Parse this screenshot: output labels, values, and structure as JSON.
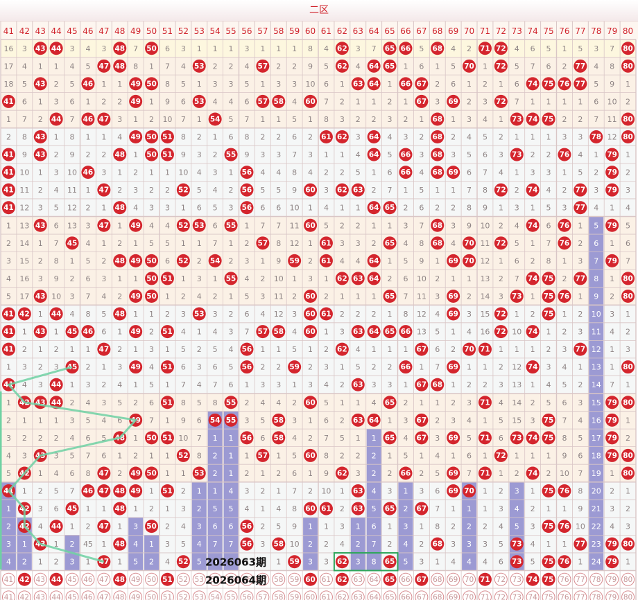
{
  "zone_title": "二区",
  "numbers": [
    41,
    42,
    43,
    44,
    45,
    46,
    47,
    48,
    49,
    50,
    51,
    52,
    53,
    54,
    55,
    56,
    57,
    58,
    59,
    60,
    61,
    62,
    63,
    64,
    65,
    66,
    67,
    68,
    69,
    70,
    71,
    72,
    73,
    74,
    75,
    76,
    77,
    78,
    79,
    80
  ],
  "rows": [
    [
      16,
      3,
      43,
      44,
      3,
      4,
      3,
      48,
      7,
      50,
      6,
      3,
      1,
      1,
      1,
      3,
      1,
      1,
      1,
      8,
      4,
      62,
      3,
      7,
      65,
      66,
      5,
      68,
      4,
      2,
      71,
      72,
      4,
      6,
      5,
      1,
      5,
      3,
      7,
      80
    ],
    [
      17,
      4,
      1,
      1,
      4,
      5,
      47,
      48,
      8,
      1,
      7,
      4,
      53,
      2,
      2,
      4,
      57,
      2,
      2,
      9,
      5,
      62,
      4,
      64,
      65,
      1,
      6,
      1,
      5,
      70,
      1,
      72,
      5,
      7,
      6,
      2,
      77,
      4,
      8,
      80
    ],
    [
      18,
      5,
      43,
      2,
      5,
      46,
      1,
      1,
      49,
      50,
      8,
      5,
      1,
      3,
      3,
      5,
      1,
      3,
      3,
      10,
      6,
      1,
      63,
      64,
      1,
      66,
      67,
      2,
      6,
      1,
      2,
      1,
      6,
      74,
      75,
      76,
      77,
      5,
      9,
      1
    ],
    [
      41,
      6,
      1,
      3,
      6,
      1,
      2,
      2,
      49,
      1,
      9,
      6,
      53,
      4,
      4,
      6,
      57,
      58,
      4,
      60,
      7,
      2,
      1,
      1,
      2,
      1,
      67,
      3,
      69,
      2,
      3,
      72,
      7,
      1,
      1,
      1,
      1,
      6,
      10,
      2
    ],
    [
      1,
      7,
      2,
      44,
      7,
      46,
      47,
      3,
      1,
      2,
      10,
      7,
      1,
      54,
      5,
      7,
      1,
      1,
      5,
      1,
      8,
      3,
      2,
      2,
      3,
      2,
      1,
      68,
      1,
      3,
      4,
      1,
      73,
      74,
      75,
      2,
      2,
      7,
      11,
      80
    ],
    [
      2,
      8,
      43,
      1,
      8,
      1,
      1,
      4,
      49,
      50,
      51,
      8,
      2,
      1,
      6,
      8,
      2,
      2,
      6,
      2,
      61,
      62,
      3,
      64,
      4,
      3,
      2,
      68,
      2,
      4,
      5,
      2,
      1,
      1,
      1,
      3,
      3,
      78,
      12,
      80
    ],
    [
      41,
      9,
      43,
      2,
      9,
      2,
      2,
      48,
      1,
      50,
      51,
      9,
      3,
      2,
      55,
      9,
      3,
      3,
      7,
      3,
      1,
      1,
      4,
      64,
      5,
      66,
      3,
      68,
      3,
      5,
      6,
      3,
      73,
      2,
      2,
      76,
      4,
      1,
      79,
      1
    ],
    [
      41,
      10,
      1,
      3,
      10,
      46,
      3,
      1,
      2,
      1,
      1,
      10,
      4,
      3,
      1,
      56,
      4,
      4,
      8,
      4,
      2,
      2,
      5,
      1,
      6,
      66,
      4,
      68,
      69,
      6,
      7,
      4,
      1,
      3,
      3,
      1,
      5,
      2,
      79,
      2
    ],
    [
      41,
      11,
      2,
      4,
      11,
      1,
      47,
      2,
      3,
      2,
      2,
      52,
      5,
      4,
      2,
      56,
      5,
      5,
      9,
      60,
      3,
      62,
      63,
      2,
      7,
      1,
      5,
      1,
      1,
      7,
      8,
      72,
      2,
      74,
      4,
      2,
      77,
      3,
      79,
      3
    ],
    [
      41,
      12,
      3,
      5,
      12,
      2,
      1,
      48,
      4,
      3,
      3,
      1,
      6,
      5,
      3,
      56,
      6,
      6,
      10,
      1,
      4,
      1,
      1,
      64,
      65,
      2,
      6,
      2,
      2,
      8,
      9,
      1,
      3,
      1,
      5,
      3,
      77,
      4,
      1,
      4
    ],
    [
      1,
      13,
      43,
      6,
      13,
      3,
      47,
      1,
      49,
      4,
      4,
      52,
      53,
      6,
      55,
      1,
      7,
      7,
      11,
      60,
      5,
      2,
      2,
      1,
      1,
      3,
      7,
      68,
      3,
      9,
      10,
      2,
      4,
      74,
      6,
      76,
      1,
      5,
      79,
      5
    ],
    [
      2,
      14,
      1,
      7,
      45,
      4,
      1,
      2,
      1,
      5,
      5,
      1,
      1,
      7,
      1,
      2,
      57,
      8,
      12,
      1,
      61,
      3,
      3,
      2,
      65,
      4,
      8,
      68,
      4,
      70,
      11,
      72,
      5,
      1,
      7,
      76,
      2,
      6,
      1,
      6
    ],
    [
      3,
      15,
      2,
      8,
      1,
      5,
      2,
      48,
      49,
      50,
      6,
      52,
      2,
      54,
      2,
      3,
      1,
      9,
      59,
      2,
      61,
      4,
      4,
      64,
      1,
      5,
      9,
      1,
      69,
      70,
      12,
      1,
      6,
      2,
      8,
      1,
      3,
      7,
      79,
      7
    ],
    [
      4,
      16,
      3,
      9,
      2,
      6,
      3,
      1,
      1,
      50,
      51,
      1,
      3,
      1,
      55,
      4,
      2,
      10,
      1,
      3,
      1,
      62,
      63,
      64,
      2,
      6,
      10,
      2,
      1,
      1,
      13,
      2,
      7,
      74,
      75,
      2,
      77,
      8,
      1,
      80
    ],
    [
      5,
      17,
      43,
      10,
      3,
      7,
      4,
      2,
      49,
      50,
      1,
      2,
      4,
      2,
      1,
      5,
      3,
      11,
      2,
      60,
      2,
      1,
      1,
      1,
      65,
      7,
      11,
      3,
      69,
      2,
      14,
      3,
      73,
      1,
      75,
      76,
      1,
      9,
      2,
      80
    ],
    [
      41,
      42,
      1,
      44,
      4,
      8,
      5,
      48,
      1,
      1,
      2,
      3,
      53,
      3,
      2,
      6,
      4,
      12,
      3,
      60,
      61,
      2,
      2,
      2,
      1,
      8,
      12,
      4,
      69,
      3,
      15,
      72,
      1,
      2,
      75,
      1,
      2,
      10,
      3,
      1
    ],
    [
      41,
      1,
      43,
      1,
      45,
      46,
      6,
      1,
      49,
      2,
      51,
      4,
      1,
      4,
      3,
      7,
      57,
      58,
      4,
      60,
      1,
      3,
      63,
      64,
      65,
      66,
      13,
      5,
      1,
      4,
      16,
      72,
      10,
      74,
      1,
      2,
      3,
      11,
      4,
      2
    ],
    [
      41,
      2,
      1,
      2,
      1,
      1,
      47,
      2,
      1,
      3,
      1,
      5,
      2,
      5,
      4,
      56,
      1,
      1,
      5,
      1,
      2,
      62,
      4,
      1,
      1,
      1,
      67,
      6,
      2,
      70,
      71,
      1,
      1,
      1,
      2,
      3,
      77,
      12,
      1,
      3
    ],
    [
      1,
      3,
      2,
      3,
      45,
      2,
      1,
      3,
      49,
      4,
      51,
      6,
      3,
      6,
      5,
      56,
      2,
      2,
      59,
      2,
      3,
      1,
      5,
      2,
      2,
      66,
      1,
      7,
      69,
      1,
      1,
      2,
      12,
      74,
      3,
      4,
      1,
      13,
      1,
      80
    ],
    [
      41,
      4,
      3,
      44,
      1,
      3,
      2,
      4,
      1,
      5,
      1,
      7,
      4,
      7,
      6,
      1,
      3,
      3,
      1,
      3,
      4,
      2,
      63,
      3,
      3,
      1,
      67,
      68,
      1,
      2,
      2,
      3,
      13,
      1,
      4,
      5,
      2,
      14,
      7,
      1
    ],
    [
      1,
      42,
      43,
      44,
      2,
      4,
      3,
      5,
      2,
      6,
      51,
      8,
      5,
      8,
      55,
      2,
      4,
      4,
      2,
      60,
      5,
      1,
      1,
      4,
      65,
      2,
      1,
      1,
      2,
      3,
      71,
      4,
      14,
      2,
      5,
      6,
      3,
      15,
      79,
      80
    ],
    [
      2,
      1,
      1,
      1,
      3,
      5,
      4,
      6,
      49,
      7,
      1,
      9,
      6,
      54,
      55,
      3,
      5,
      58,
      3,
      1,
      6,
      2,
      63,
      64,
      1,
      3,
      67,
      2,
      3,
      4,
      1,
      5,
      15,
      3,
      75,
      7,
      4,
      16,
      79,
      1
    ],
    [
      3,
      2,
      2,
      2,
      4,
      6,
      5,
      48,
      1,
      50,
      51,
      10,
      7,
      1,
      1,
      56,
      6,
      58,
      4,
      2,
      7,
      5,
      1,
      1,
      65,
      4,
      67,
      3,
      69,
      5,
      71,
      6,
      73,
      74,
      75,
      8,
      5,
      17,
      79,
      2
    ],
    [
      4,
      3,
      43,
      3,
      5,
      7,
      6,
      1,
      2,
      1,
      1,
      52,
      8,
      2,
      1,
      1,
      57,
      1,
      5,
      60,
      8,
      2,
      2,
      2,
      1,
      5,
      1,
      4,
      1,
      6,
      1,
      72,
      1,
      1,
      1,
      9,
      6,
      18,
      79,
      80
    ],
    [
      5,
      42,
      1,
      4,
      6,
      8,
      47,
      2,
      49,
      50,
      1,
      1,
      53,
      2,
      1,
      2,
      1,
      2,
      6,
      1,
      9,
      62,
      3,
      2,
      2,
      66,
      2,
      5,
      69,
      7,
      71,
      1,
      2,
      74,
      2,
      10,
      7,
      19,
      1,
      80
    ],
    [
      41,
      1,
      2,
      5,
      7,
      46,
      47,
      48,
      49,
      1,
      51,
      2,
      1,
      1,
      4,
      3,
      2,
      1,
      7,
      2,
      10,
      1,
      63,
      4,
      3,
      1,
      3,
      6,
      69,
      70,
      1,
      2,
      3,
      1,
      75,
      76,
      8,
      20,
      2,
      1
    ],
    [
      1,
      42,
      3,
      6,
      45,
      1,
      1,
      48,
      1,
      2,
      1,
      3,
      2,
      5,
      5,
      4,
      1,
      4,
      8,
      60,
      61,
      2,
      63,
      5,
      65,
      2,
      67,
      7,
      1,
      1,
      1,
      3,
      4,
      2,
      1,
      1,
      9,
      21,
      3,
      2
    ],
    [
      2,
      42,
      4,
      44,
      1,
      2,
      47,
      1,
      3,
      50,
      2,
      4,
      3,
      6,
      6,
      56,
      2,
      5,
      9,
      1,
      1,
      3,
      1,
      6,
      1,
      3,
      1,
      8,
      2,
      2,
      2,
      4,
      5,
      3,
      75,
      76,
      10,
      22,
      4,
      3
    ],
    [
      3,
      1,
      43,
      1,
      2,
      45,
      1,
      48,
      4,
      1,
      3,
      5,
      4,
      7,
      7,
      56,
      3,
      58,
      10,
      2,
      2,
      4,
      2,
      7,
      2,
      4,
      2,
      68,
      3,
      3,
      3,
      5,
      73,
      4,
      1,
      1,
      77,
      23,
      79,
      80
    ],
    [
      4,
      2,
      1,
      2,
      3,
      1,
      47,
      1,
      5,
      2,
      4,
      52,
      5,
      8,
      8,
      1,
      4,
      1,
      59,
      3,
      3,
      62,
      3,
      8,
      65,
      5,
      3,
      1,
      4,
      4,
      4,
      6,
      73,
      5,
      75,
      76,
      1,
      24,
      79,
      1
    ]
  ],
  "bars": [
    5,
    3,
    0,
    0,
    2,
    0,
    0,
    0,
    3,
    2,
    0,
    0,
    5,
    9,
    9,
    0,
    0,
    0,
    0,
    3,
    0,
    0,
    3,
    8,
    0,
    5,
    0,
    0,
    0,
    5,
    0,
    0,
    5,
    0,
    0,
    0,
    0,
    20,
    0,
    0
  ],
  "draw_rows": [
    [
      41,
      42,
      43,
      44,
      45,
      46,
      47,
      48,
      49,
      50,
      51,
      52,
      53,
      54,
      55,
      56,
      57,
      58,
      59,
      60,
      61,
      62,
      63,
      64,
      65,
      66,
      67,
      68,
      69,
      70,
      71,
      72,
      73,
      74,
      75,
      76,
      77,
      78,
      79,
      80
    ],
    [
      41,
      42,
      43,
      44,
      45,
      46,
      47,
      48,
      49,
      50,
      51,
      52,
      53,
      54,
      55,
      56,
      57,
      58,
      59,
      60,
      61,
      62,
      63,
      64,
      65,
      66,
      67,
      68,
      69,
      70,
      71,
      72,
      73,
      74,
      75,
      76,
      77,
      78,
      79,
      80
    ]
  ],
  "draw_row1_hits": [
    42,
    44,
    48,
    51,
    60,
    62,
    65,
    67,
    71,
    74,
    75
  ],
  "label_63": "2026063期",
  "label_64": "2026064期",
  "colors": {
    "header_text": "#d0232c",
    "ball": "#d4252d",
    "bar": "#9c9ad3",
    "line": "#6fd1a3",
    "cell_bg": "#fbf1e6",
    "cell_bg_alt": "#f5f7f7",
    "grid": "#d9c6c6",
    "missing_text": "#8f8585"
  }
}
